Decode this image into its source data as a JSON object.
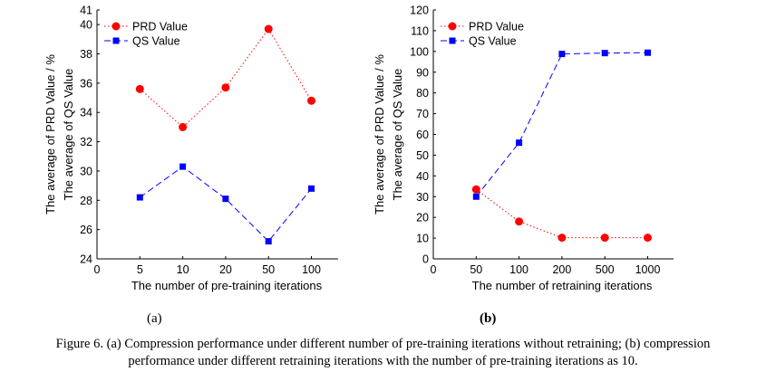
{
  "chart_data": [
    {
      "type": "line",
      "categories": [
        "0",
        "5",
        "10",
        "20",
        "50",
        "100"
      ],
      "ylim": [
        24,
        41
      ],
      "yticks": [
        24,
        26,
        28,
        30,
        32,
        34,
        36,
        38,
        40,
        41
      ],
      "ylabel_lines": [
        "The average of PRD Value / %",
        "The average of QS Value"
      ],
      "xlabel": "The number of pre-training iterations",
      "legend_position": "top-left",
      "series": [
        {
          "name": "PRD Value",
          "color": "#ff0000",
          "marker": "circle",
          "style": "dotted",
          "values": [
            null,
            35.6,
            33.0,
            35.7,
            39.7,
            34.8
          ]
        },
        {
          "name": "QS Value",
          "color": "#0000ff",
          "marker": "square",
          "style": "dashed",
          "values": [
            null,
            28.2,
            30.3,
            28.1,
            25.2,
            28.8
          ]
        }
      ],
      "panel_label": "(a)"
    },
    {
      "type": "line",
      "categories": [
        "0",
        "50",
        "100",
        "200",
        "500",
        "1000"
      ],
      "ylim": [
        0,
        120
      ],
      "yticks": [
        0,
        10,
        20,
        30,
        40,
        50,
        60,
        70,
        80,
        90,
        100,
        110,
        120
      ],
      "ylabel_lines": [
        "The average of PRD Value / %",
        "The average of QS Value"
      ],
      "xlabel": "The number of retraining iterations",
      "legend_position": "top-left",
      "series": [
        {
          "name": "PRD Value",
          "color": "#ff0000",
          "marker": "circle",
          "style": "dotted",
          "values": [
            null,
            33.5,
            18.0,
            10.2,
            10.2,
            10.2
          ]
        },
        {
          "name": "QS Value",
          "color": "#0000ff",
          "marker": "square",
          "style": "dashed",
          "values": [
            null,
            30.0,
            56.0,
            98.8,
            99.2,
            99.4
          ]
        }
      ],
      "panel_label": "(b)"
    }
  ],
  "caption": {
    "line1": "Figure 6. (a) Compression performance under different number of pre-training iterations without retraining; (b) compression",
    "line2": "performance under different retraining iterations with the number of pre-training iterations as 10."
  }
}
